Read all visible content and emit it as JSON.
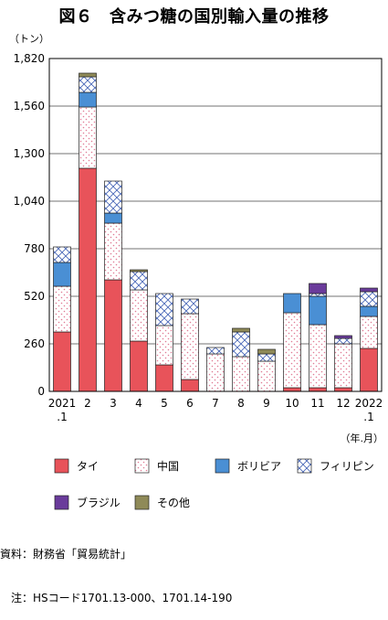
{
  "chart_data": {
    "type": "bar",
    "stacked": true,
    "title": "図６　含みつ糖の国別輸入量の推移",
    "y_unit": "（トン）",
    "x_unit": "（年.月）",
    "ylim": [
      0,
      1820
    ],
    "yticks": [
      "0",
      "260",
      "520",
      "780",
      "1,040",
      "1,300",
      "1,560",
      "1,820"
    ],
    "ytick_values": [
      0,
      260,
      520,
      780,
      1040,
      1300,
      1560,
      1820
    ],
    "grid": true,
    "legend_position": "bottom",
    "categories": [
      "2021\n.1",
      "2",
      "3",
      "4",
      "5",
      "6",
      "7",
      "8",
      "9",
      "10",
      "11",
      "12",
      "2022\n.1"
    ],
    "series": [
      {
        "name": "タイ",
        "color": "#e8535a",
        "pattern": "solid",
        "values": [
          325,
          1220,
          610,
          275,
          145,
          65,
          0,
          0,
          0,
          20,
          20,
          20,
          235
        ]
      },
      {
        "name": "中国",
        "color": "#f4b5c2",
        "pattern": "dots",
        "values": [
          250,
          335,
          310,
          280,
          215,
          360,
          205,
          190,
          165,
          410,
          345,
          240,
          175
        ]
      },
      {
        "name": "ボリビア",
        "color": "#4a8fd4",
        "pattern": "solid",
        "values": [
          130,
          80,
          55,
          0,
          0,
          0,
          0,
          0,
          0,
          105,
          155,
          0,
          55
        ]
      },
      {
        "name": "フィリピン",
        "color": "#6d86c8",
        "pattern": "cross",
        "values": [
          85,
          85,
          175,
          100,
          175,
          80,
          35,
          135,
          40,
          0,
          15,
          30,
          80
        ]
      },
      {
        "name": "ブラジル",
        "color": "#6a3b9b",
        "pattern": "solid",
        "values": [
          0,
          0,
          0,
          0,
          0,
          0,
          0,
          0,
          0,
          0,
          55,
          15,
          20
        ]
      },
      {
        "name": "その他",
        "color": "#8f8a58",
        "pattern": "solid",
        "values": [
          0,
          20,
          0,
          10,
          0,
          0,
          0,
          20,
          25,
          0,
          0,
          0,
          0
        ]
      }
    ]
  },
  "notes": {
    "source": "資料：財務省「貿易統計」",
    "note": "　注：HSコード1701.13-000、1701.14-190"
  }
}
